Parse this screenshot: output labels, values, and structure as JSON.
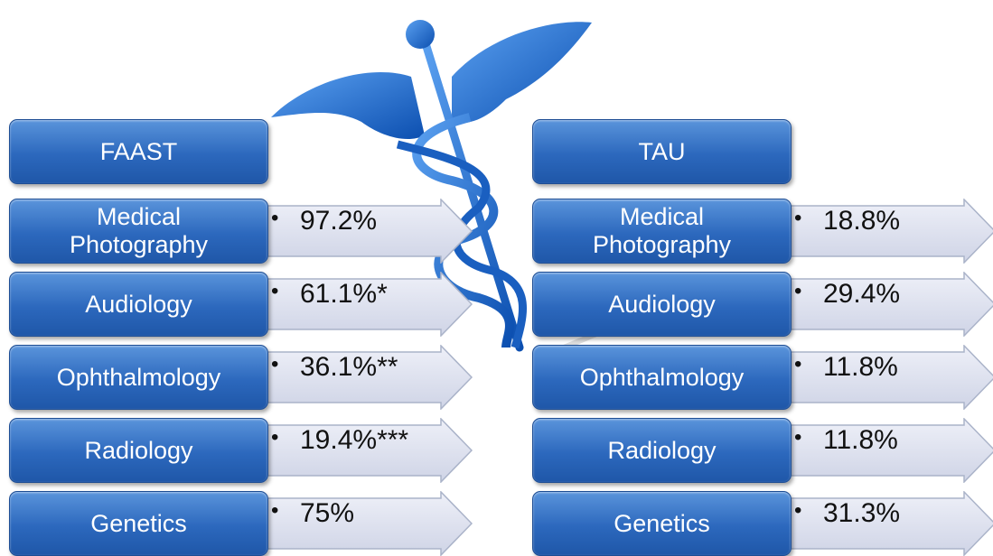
{
  "columns": [
    {
      "header": "FAAST",
      "rows": [
        {
          "label": "Medical Photography",
          "value": "97.2%"
        },
        {
          "label": "Audiology",
          "value": "61.1%*"
        },
        {
          "label": "Ophthalmology",
          "value": "36.1%**"
        },
        {
          "label": "Radiology",
          "value": "19.4%***"
        },
        {
          "label": "Genetics",
          "value": "75%"
        }
      ]
    },
    {
      "header": "TAU",
      "rows": [
        {
          "label": "Medical Photography",
          "value": "18.8%"
        },
        {
          "label": "Audiology",
          "value": "29.4%"
        },
        {
          "label": "Ophthalmology",
          "value": "11.8%"
        },
        {
          "label": "Radiology",
          "value": "11.8%"
        },
        {
          "label": "Genetics",
          "value": "31.3%"
        }
      ]
    }
  ]
}
